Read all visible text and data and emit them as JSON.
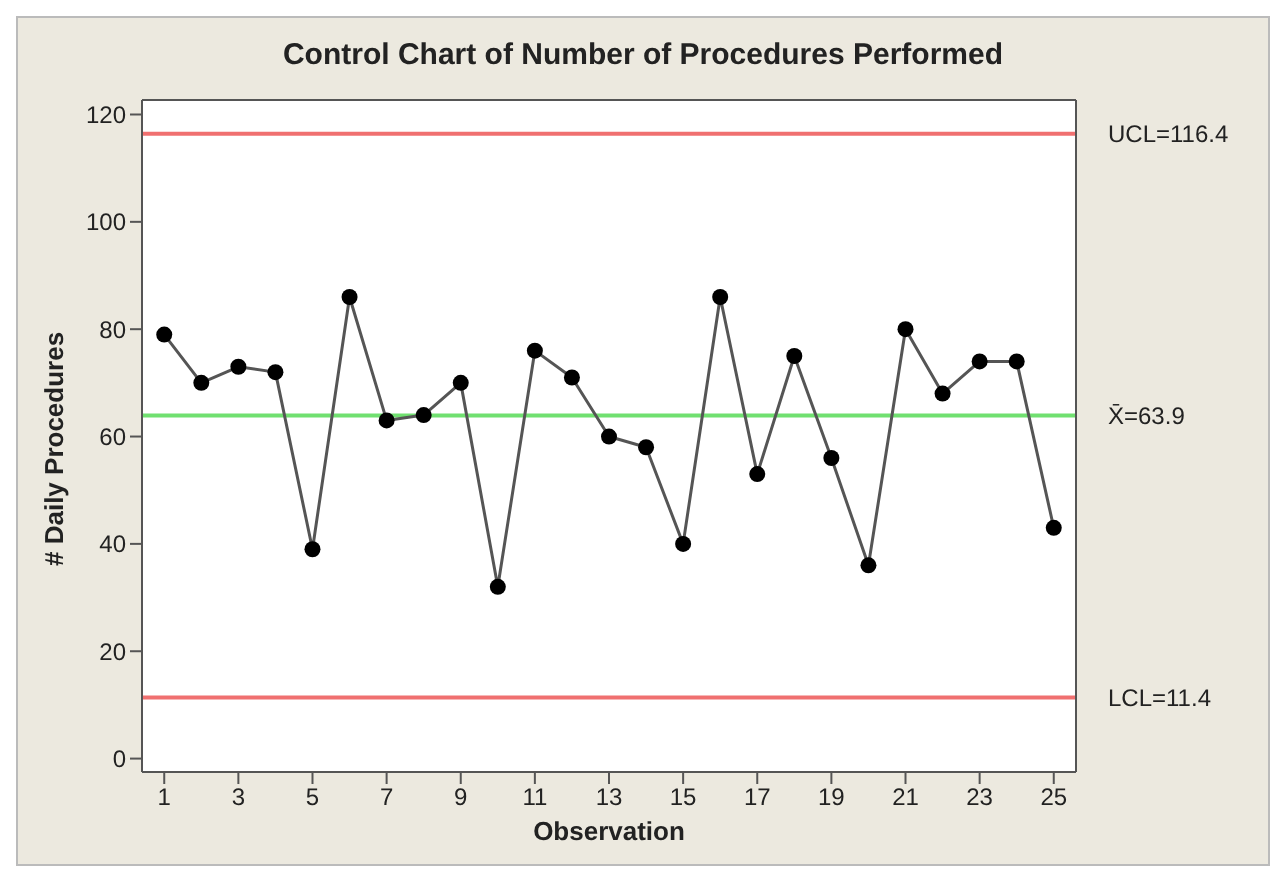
{
  "chart_data": {
    "type": "line",
    "title": "Control Chart of Number of Procedures Performed",
    "xlabel": "Observation",
    "ylabel": "# Daily Procedures",
    "x": [
      1,
      2,
      3,
      4,
      5,
      6,
      7,
      8,
      9,
      10,
      11,
      12,
      13,
      14,
      15,
      16,
      17,
      18,
      19,
      20,
      21,
      22,
      23,
      24,
      25
    ],
    "series": [
      {
        "color": "#000000",
        "values": [
          79,
          70,
          73,
          72,
          39,
          86,
          63,
          64,
          70,
          32,
          76,
          71,
          60,
          58,
          40,
          86,
          53,
          75,
          56,
          36,
          80,
          68,
          74,
          74,
          43
        ]
      }
    ],
    "xlim": [
      0.4,
      25.6
    ],
    "xticks": [
      1,
      3,
      5,
      7,
      9,
      11,
      13,
      15,
      17,
      19,
      21,
      23,
      25
    ],
    "ylim": [
      -2.5,
      122.7
    ],
    "yticks": [
      0,
      20,
      40,
      60,
      80,
      100,
      120
    ],
    "ref_lines": [
      {
        "axis": "y",
        "value": 116.4,
        "label": "UCL=116.4",
        "color": "#f07070"
      },
      {
        "axis": "y",
        "value": 63.9,
        "label": "X̄=63.9",
        "color": "#70e070"
      },
      {
        "axis": "y",
        "value": 11.4,
        "label": "LCL=11.4",
        "color": "#f07070"
      }
    ],
    "grid": false,
    "legend": false,
    "marker": "circle",
    "line_style": "solid"
  }
}
